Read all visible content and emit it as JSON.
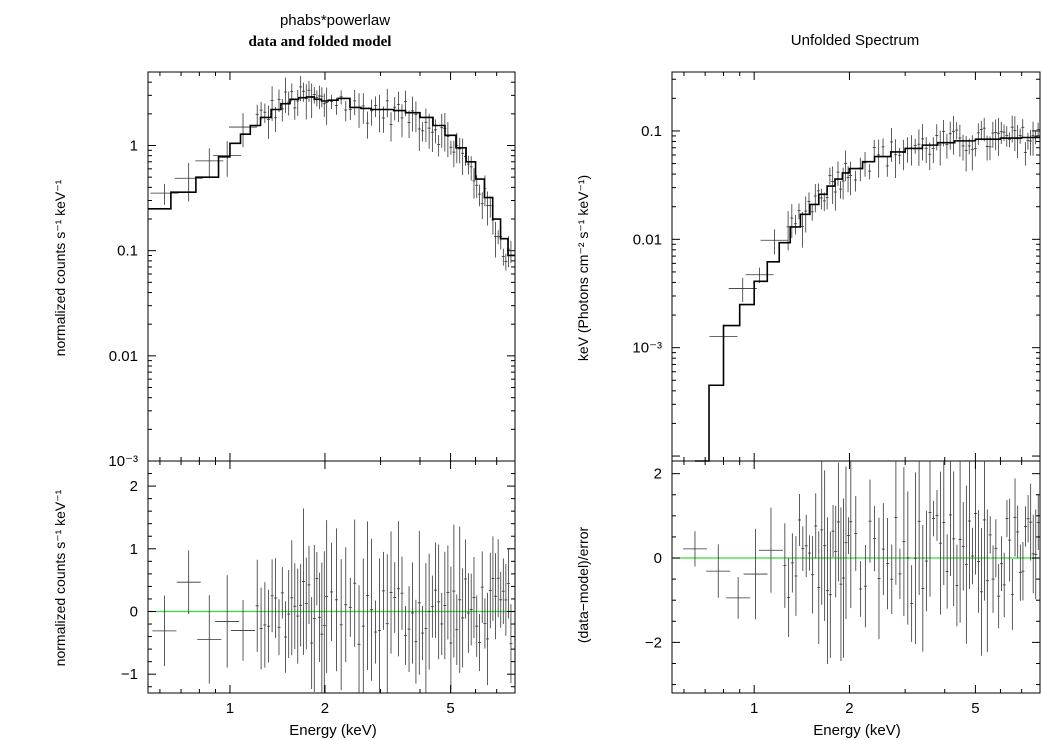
{
  "left": {
    "title_line1": "phabs*powerlaw",
    "title_line2": "data and folded model",
    "top_ylabel": "normalized counts s⁻¹ keV⁻¹",
    "bottom_ylabel": "normalized counts s⁻¹ keV⁻¹",
    "xlabel": "Energy (keV)"
  },
  "right": {
    "title": "Unfolded Spectrum",
    "top_ylabel": "keV (Photons cm⁻² s⁻¹ keV⁻¹)",
    "bottom_ylabel": "(data−model)/error",
    "xlabel": "Energy (keV)"
  },
  "chart_data": [
    {
      "type": "line",
      "name": "left-top",
      "yscale": "log",
      "xscale": "log",
      "xlim": [
        0.55,
        8.0
      ],
      "ylim": [
        0.001,
        5
      ],
      "yticks": [
        {
          "v": 1,
          "label": "1"
        },
        {
          "v": 0.1,
          "label": "0.1"
        },
        {
          "v": 0.01,
          "label": "0.01"
        },
        {
          "v": 0.001,
          "label": "10⁻³"
        }
      ],
      "model_x": [
        0.55,
        0.65,
        0.78,
        0.92,
        1.0,
        1.08,
        1.16,
        1.25,
        1.35,
        1.45,
        1.55,
        1.65,
        1.75,
        1.85,
        1.95,
        2.05,
        2.2,
        2.4,
        2.6,
        2.8,
        3.0,
        3.3,
        3.6,
        4.0,
        4.4,
        4.8,
        5.2,
        5.6,
        6.0,
        6.4,
        6.8,
        7.2,
        7.6,
        8.0
      ],
      "model_y": [
        0.25,
        0.36,
        0.5,
        0.78,
        1.05,
        1.28,
        1.55,
        1.85,
        2.2,
        2.5,
        2.75,
        2.85,
        2.9,
        2.75,
        2.65,
        2.7,
        2.8,
        2.3,
        2.25,
        2.2,
        2.2,
        2.15,
        2.05,
        1.85,
        1.55,
        1.25,
        0.95,
        0.7,
        0.48,
        0.32,
        0.2,
        0.13,
        0.09,
        0.09
      ]
    },
    {
      "type": "scatter",
      "name": "left-bottom",
      "xscale": "log",
      "xlim": [
        0.55,
        8.0
      ],
      "ylim": [
        -1.3,
        2.4
      ],
      "yticks": [
        {
          "v": 2,
          "label": "2"
        },
        {
          "v": 1,
          "label": "1"
        },
        {
          "v": 0,
          "label": "0"
        },
        {
          "v": -1,
          "label": "−1"
        }
      ],
      "xticks": [
        {
          "v": 1,
          "label": "1"
        },
        {
          "v": 2,
          "label": "2"
        },
        {
          "v": 5,
          "label": "5"
        }
      ]
    },
    {
      "type": "line",
      "name": "right-top",
      "yscale": "log",
      "xscale": "log",
      "xlim": [
        0.55,
        8.0
      ],
      "ylim": [
        9e-05,
        0.35
      ],
      "yticks": [
        {
          "v": 0.1,
          "label": "0.1"
        },
        {
          "v": 0.01,
          "label": "0.01"
        },
        {
          "v": 0.001,
          "label": "10⁻³"
        }
      ],
      "model_x": [
        0.65,
        0.72,
        0.8,
        0.9,
        1.0,
        1.1,
        1.2,
        1.3,
        1.4,
        1.5,
        1.6,
        1.7,
        1.8,
        1.9,
        2.0,
        2.2,
        2.4,
        2.7,
        3.0,
        3.4,
        3.8,
        4.3,
        5.0,
        6.0,
        7.0,
        8.0
      ],
      "model_y": [
        9e-05,
        0.00045,
        0.0016,
        0.0025,
        0.0041,
        0.0062,
        0.0093,
        0.013,
        0.017,
        0.021,
        0.026,
        0.031,
        0.036,
        0.041,
        0.045,
        0.052,
        0.058,
        0.064,
        0.069,
        0.074,
        0.078,
        0.081,
        0.084,
        0.086,
        0.087,
        0.087
      ]
    },
    {
      "type": "scatter",
      "name": "right-bottom",
      "xscale": "log",
      "xlim": [
        0.55,
        8.0
      ],
      "ylim": [
        -3.2,
        2.3
      ],
      "yticks": [
        {
          "v": 2,
          "label": "2"
        },
        {
          "v": 0,
          "label": "0"
        },
        {
          "v": -2,
          "label": "−2"
        }
      ],
      "xticks": [
        {
          "v": 1,
          "label": "1"
        },
        {
          "v": 2,
          "label": "2"
        },
        {
          "v": 5,
          "label": "5"
        }
      ]
    }
  ]
}
